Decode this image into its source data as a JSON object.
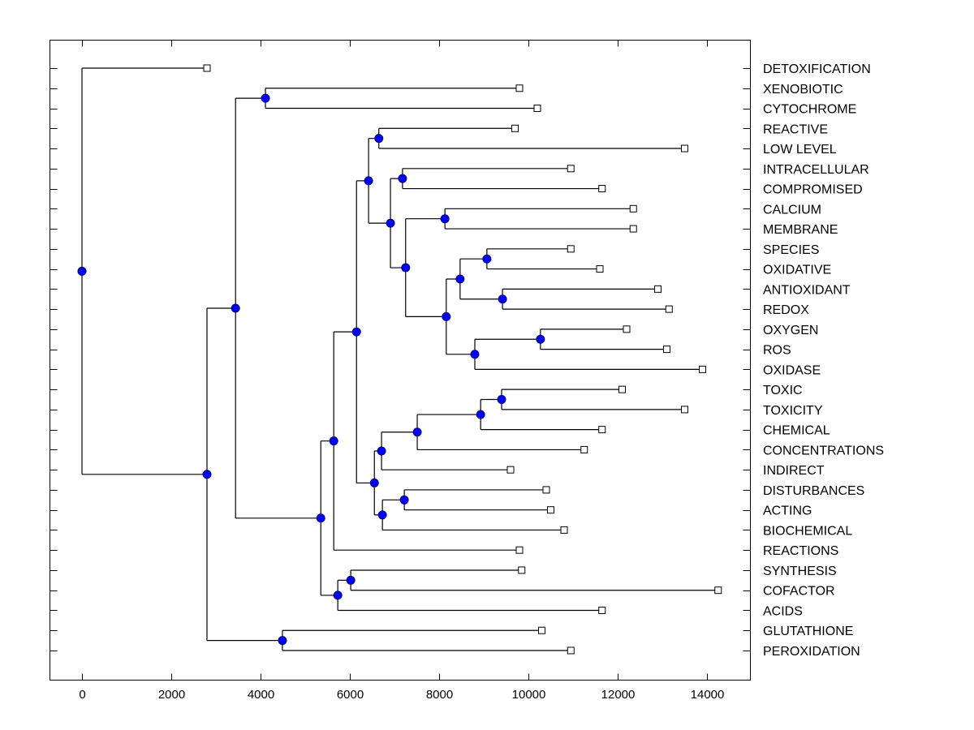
{
  "chart_data": {
    "type": "dendrogram",
    "title": "",
    "xlabel": "",
    "ylabel": "",
    "xlim": [
      -700,
      15000
    ],
    "x_ticks": [
      0,
      2000,
      4000,
      6000,
      8000,
      10000,
      12000,
      14000
    ],
    "x_tick_labels": [
      "0",
      "2000",
      "4000",
      "6000",
      "8000",
      "10000",
      "12000",
      "14000"
    ],
    "grid": false,
    "colors": {
      "node_fill": "#0000ff",
      "node_stroke": "#000080",
      "leaf_fill": "#ffffff",
      "line": "#000000"
    },
    "leaves": [
      {
        "label": "DETOXIFICATION",
        "value": 2800
      },
      {
        "label": "XENOBIOTIC",
        "value": 9800
      },
      {
        "label": "CYTOCHROME",
        "value": 10200
      },
      {
        "label": "REACTIVE",
        "value": 9700
      },
      {
        "label": "LOW LEVEL",
        "value": 13500
      },
      {
        "label": "INTRACELLULAR",
        "value": 10950
      },
      {
        "label": "COMPROMISED",
        "value": 11650
      },
      {
        "label": "CALCIUM",
        "value": 12350
      },
      {
        "label": "MEMBRANE",
        "value": 12350
      },
      {
        "label": "SPECIES",
        "value": 10950
      },
      {
        "label": "OXIDATIVE",
        "value": 11600
      },
      {
        "label": "ANTIOXIDANT",
        "value": 12900
      },
      {
        "label": "REDOX",
        "value": 13150
      },
      {
        "label": "OXYGEN",
        "value": 12200
      },
      {
        "label": "ROS",
        "value": 13100
      },
      {
        "label": "OXIDASE",
        "value": 13900
      },
      {
        "label": "TOXIC",
        "value": 12100
      },
      {
        "label": "TOXICITY",
        "value": 13500
      },
      {
        "label": "CHEMICAL",
        "value": 11650
      },
      {
        "label": "CONCENTRATIONS",
        "value": 11250
      },
      {
        "label": "INDIRECT",
        "value": 9600
      },
      {
        "label": "DISTURBANCES",
        "value": 10400
      },
      {
        "label": "ACTING",
        "value": 10500
      },
      {
        "label": "BIOCHEMICAL",
        "value": 10800
      },
      {
        "label": "REACTIONS",
        "value": 9800
      },
      {
        "label": "SYNTHESIS",
        "value": 9850
      },
      {
        "label": "COFACTOR",
        "value": 14250
      },
      {
        "label": "ACIDS",
        "value": 11650
      },
      {
        "label": "GLUTATHIONE",
        "value": 10300
      },
      {
        "label": "PEROXIDATION",
        "value": 10950
      }
    ],
    "nodes": [
      {
        "id": "n_root",
        "value": 0,
        "children": [
          "L0",
          "n_a"
        ]
      },
      {
        "id": "n_a",
        "value": 2800,
        "children": [
          "n_b",
          "n_glut"
        ]
      },
      {
        "id": "n_b",
        "value": 3440,
        "children": [
          "n_xeno",
          "n_c"
        ]
      },
      {
        "id": "n_xeno",
        "value": 4110,
        "children": [
          "L1",
          "L2"
        ]
      },
      {
        "id": "n_c",
        "value": 5350,
        "children": [
          "n_d",
          "n_syn2"
        ]
      },
      {
        "id": "n_d",
        "value": 5640,
        "children": [
          "n_e",
          "L24"
        ]
      },
      {
        "id": "n_e",
        "value": 6150,
        "children": [
          "n_f",
          "n_tox0"
        ]
      },
      {
        "id": "n_f",
        "value": 6420,
        "children": [
          "n_react",
          "n_g"
        ]
      },
      {
        "id": "n_react",
        "value": 6650,
        "children": [
          "L3",
          "L4"
        ]
      },
      {
        "id": "n_g",
        "value": 6910,
        "children": [
          "n_intra",
          "n_h"
        ]
      },
      {
        "id": "n_intra",
        "value": 7180,
        "children": [
          "L5",
          "L6"
        ]
      },
      {
        "id": "n_h",
        "value": 7250,
        "children": [
          "n_calc",
          "n_i"
        ]
      },
      {
        "id": "n_calc",
        "value": 8130,
        "children": [
          "L7",
          "L8"
        ]
      },
      {
        "id": "n_i",
        "value": 8160,
        "children": [
          "n_j",
          "n_k"
        ]
      },
      {
        "id": "n_j",
        "value": 8470,
        "children": [
          "n_spec",
          "n_anti"
        ]
      },
      {
        "id": "n_spec",
        "value": 9070,
        "children": [
          "L9",
          "L10"
        ]
      },
      {
        "id": "n_anti",
        "value": 9420,
        "children": [
          "L11",
          "L12"
        ]
      },
      {
        "id": "n_k",
        "value": 8800,
        "children": [
          "n_oxy",
          "L15"
        ]
      },
      {
        "id": "n_oxy",
        "value": 10270,
        "children": [
          "L13",
          "L14"
        ]
      },
      {
        "id": "n_tox0",
        "value": 6550,
        "children": [
          "n_tox1",
          "n_dist0"
        ]
      },
      {
        "id": "n_tox1",
        "value": 6710,
        "children": [
          "n_tox2",
          "L20"
        ]
      },
      {
        "id": "n_tox2",
        "value": 7510,
        "children": [
          "n_tox3",
          "L19"
        ]
      },
      {
        "id": "n_tox3",
        "value": 8930,
        "children": [
          "n_tox4",
          "L18"
        ]
      },
      {
        "id": "n_tox4",
        "value": 9400,
        "children": [
          "L16",
          "L17"
        ]
      },
      {
        "id": "n_dist0",
        "value": 6730,
        "children": [
          "n_dist1",
          "L23"
        ]
      },
      {
        "id": "n_dist1",
        "value": 7220,
        "children": [
          "L21",
          "L22"
        ]
      },
      {
        "id": "n_syn2",
        "value": 5730,
        "children": [
          "n_syn1",
          "L27"
        ]
      },
      {
        "id": "n_syn1",
        "value": 6020,
        "children": [
          "L25",
          "L26"
        ]
      },
      {
        "id": "n_glut",
        "value": 4490,
        "children": [
          "L28",
          "L29"
        ]
      }
    ]
  }
}
